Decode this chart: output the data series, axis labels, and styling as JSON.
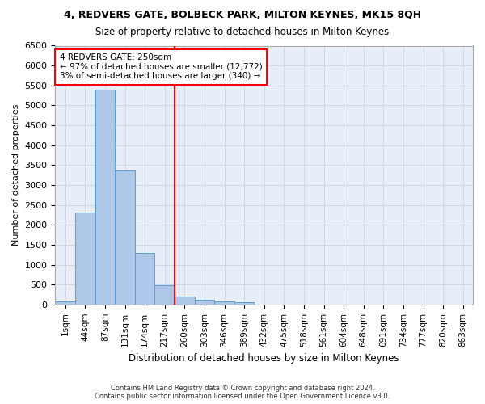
{
  "title1": "4, REDVERS GATE, BOLBECK PARK, MILTON KEYNES, MK15 8QH",
  "title2": "Size of property relative to detached houses in Milton Keynes",
  "xlabel": "Distribution of detached houses by size in Milton Keynes",
  "ylabel": "Number of detached properties",
  "footnote1": "Contains HM Land Registry data © Crown copyright and database right 2024.",
  "footnote2": "Contains public sector information licensed under the Open Government Licence v3.0.",
  "bin_labels": [
    "1sqm",
    "44sqm",
    "87sqm",
    "131sqm",
    "174sqm",
    "217sqm",
    "260sqm",
    "303sqm",
    "346sqm",
    "389sqm",
    "432sqm",
    "475sqm",
    "518sqm",
    "561sqm",
    "604sqm",
    "648sqm",
    "691sqm",
    "734sqm",
    "777sqm",
    "820sqm",
    "863sqm"
  ],
  "bar_values": [
    75,
    2300,
    5400,
    3370,
    1300,
    490,
    200,
    120,
    70,
    55,
    0,
    0,
    0,
    0,
    0,
    0,
    0,
    0,
    0,
    0,
    0
  ],
  "bar_color": "#aec6e8",
  "bar_edge_color": "#5a9fd4",
  "vline_x": 5.5,
  "vline_color": "red",
  "annotation_text": "4 REDVERS GATE: 250sqm\n← 97% of detached houses are smaller (12,772)\n3% of semi-detached houses are larger (340) →",
  "annotation_box_color": "white",
  "annotation_box_edge": "red",
  "ylim": [
    0,
    6500
  ],
  "yticks": [
    0,
    500,
    1000,
    1500,
    2000,
    2500,
    3000,
    3500,
    4000,
    4500,
    5000,
    5500,
    6000,
    6500
  ],
  "grid_color": "#d0d8e8",
  "bg_color": "#e8eef8"
}
